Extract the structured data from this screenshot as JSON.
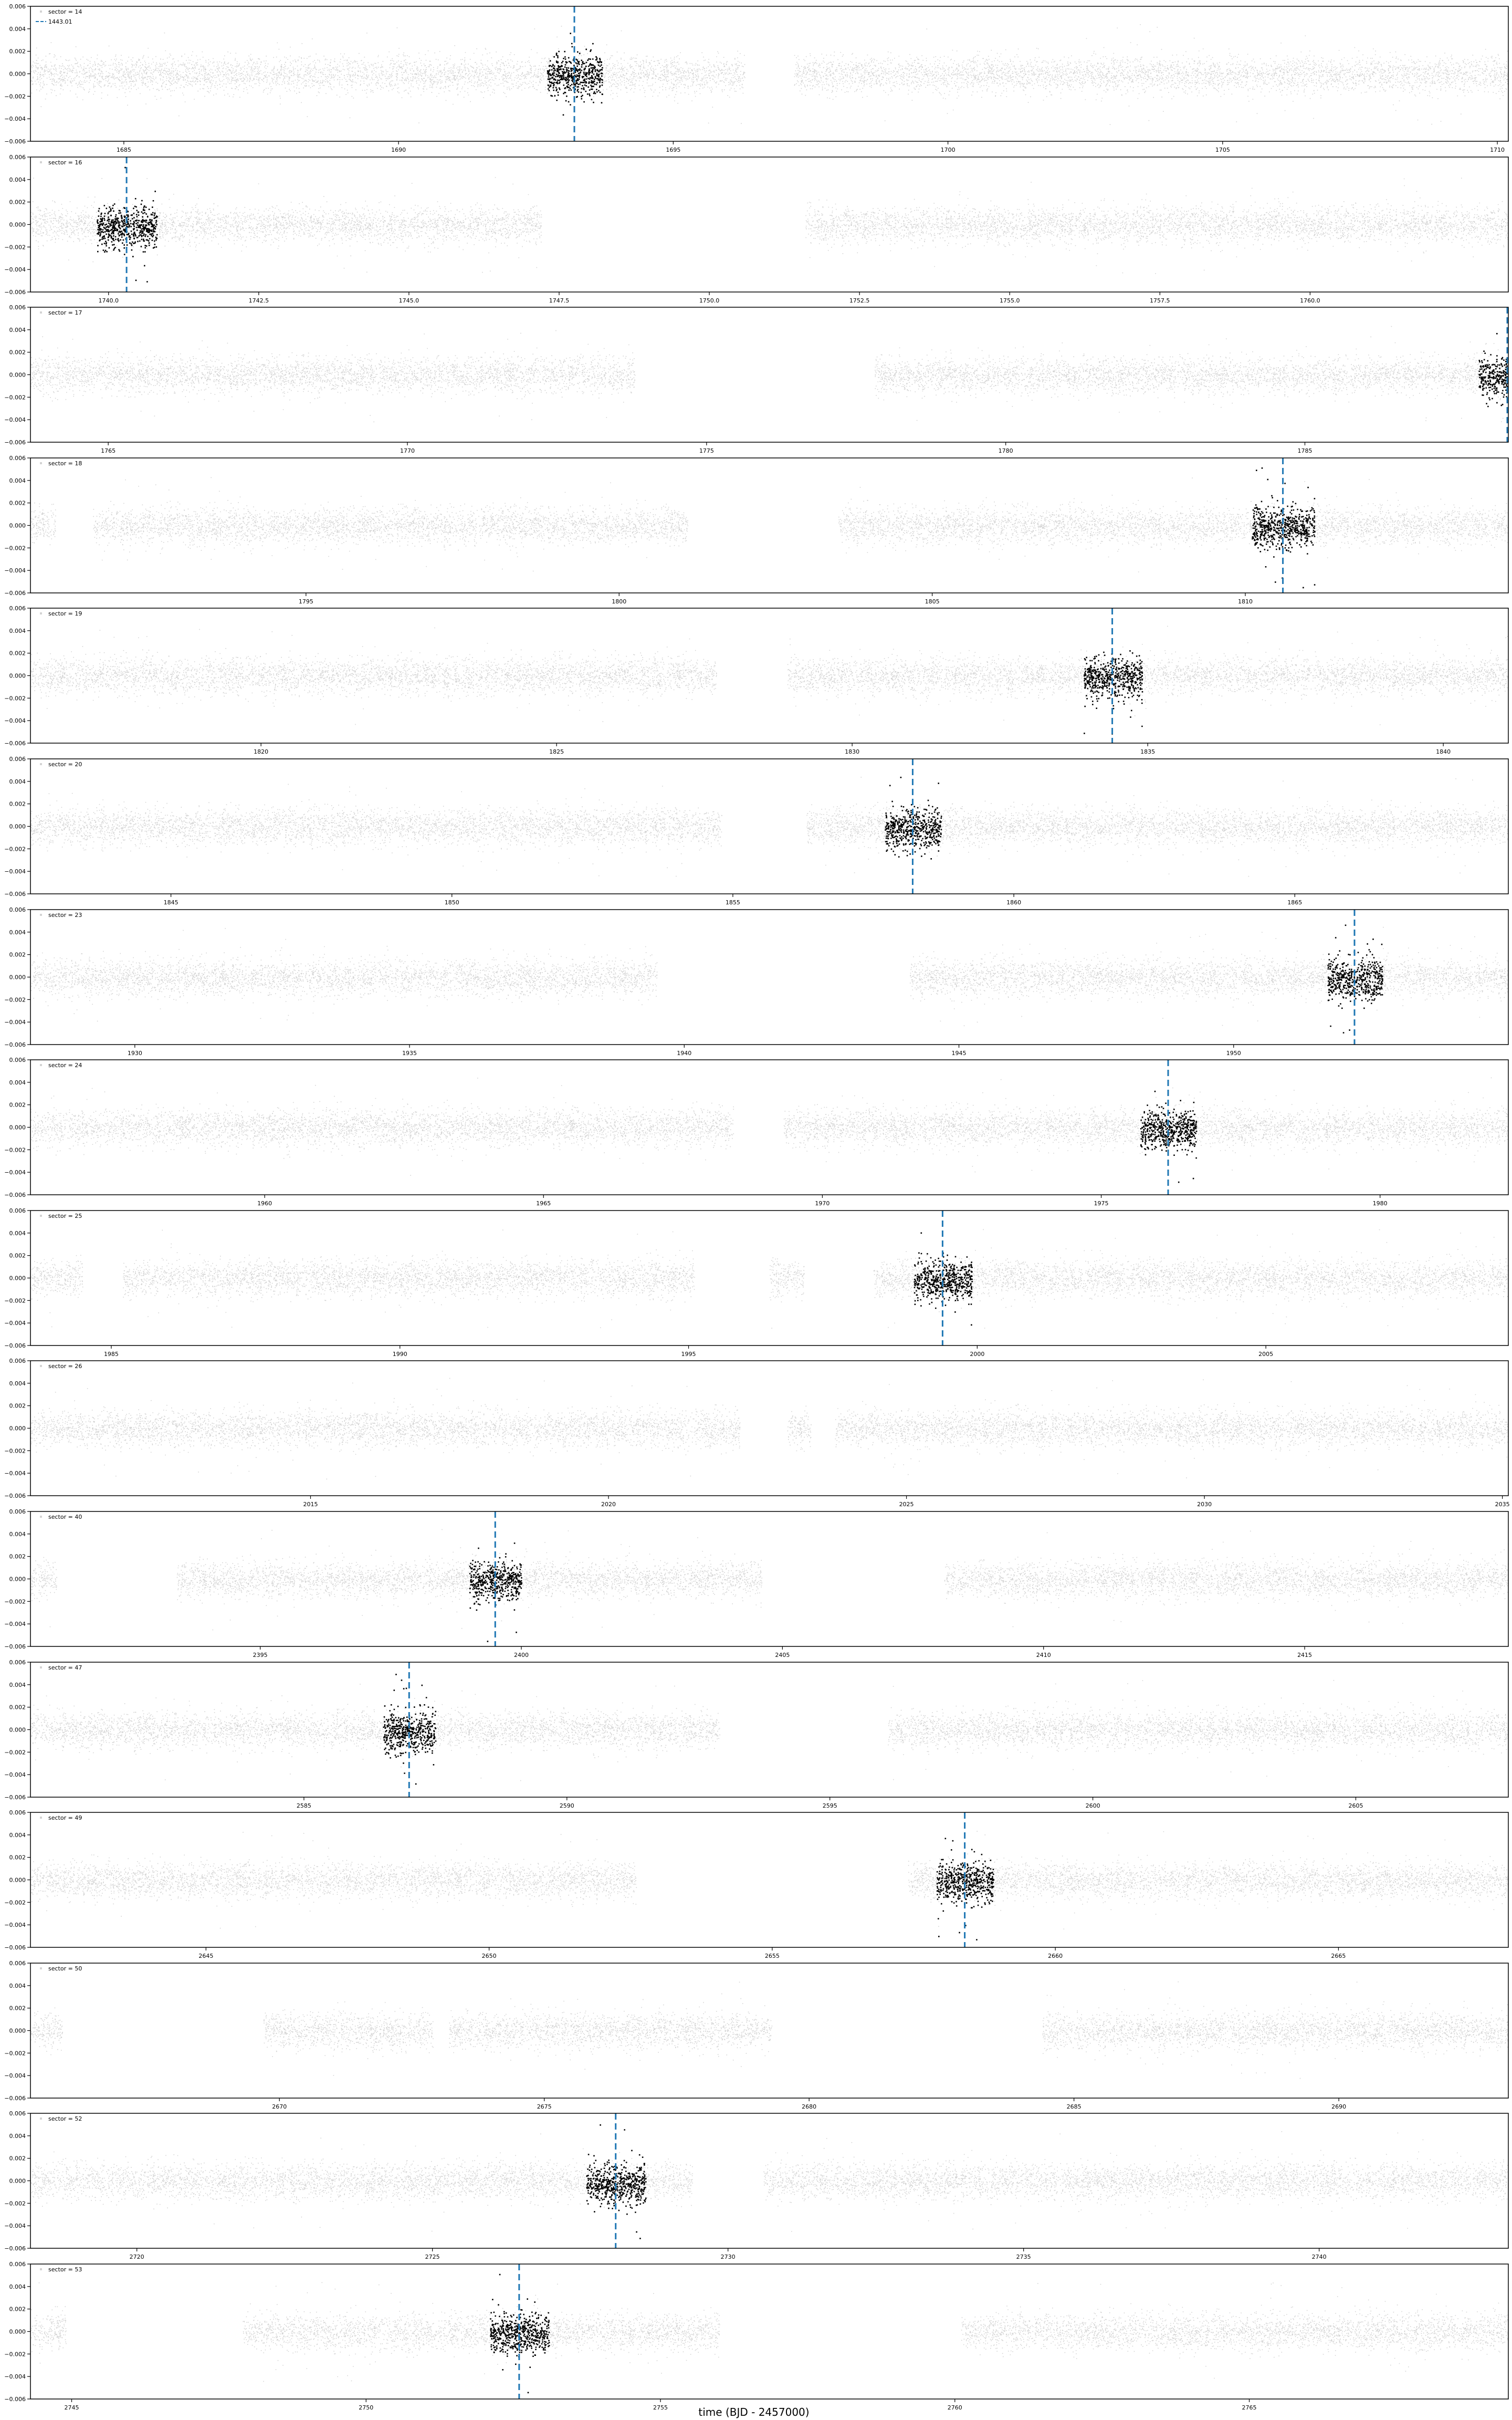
{
  "figure": {
    "xlabel": "time (BJD - 2457000)",
    "ylim": [
      -0.006,
      0.006
    ],
    "yticks": [
      -0.006,
      -0.004,
      -0.002,
      0.0,
      0.002,
      0.004,
      0.006
    ],
    "transit_legend_label": "1443.01"
  },
  "colors": {
    "background_points": "#d3d3d3",
    "in_transit_points": "#000000",
    "transit_line": "#1f77b4",
    "axes": "#000000"
  },
  "chart_data": [
    {
      "type": "scatter",
      "legend": "sector = 14",
      "xlim": [
        1683.3,
        1710.2
      ],
      "xticks": [
        1685,
        1690,
        1695,
        1700,
        1705,
        1710
      ],
      "transit_time": 1693.2,
      "gaps": [
        [
          1696.3,
          1697.2
        ]
      ],
      "segments": [
        [
          1683.3,
          1696.3
        ],
        [
          1697.2,
          1710.2
        ]
      ]
    },
    {
      "type": "scatter",
      "legend": "sector = 16",
      "xlim": [
        1738.7,
        1763.3
      ],
      "xticks": [
        1740.0,
        1742.5,
        1745.0,
        1747.5,
        1750.0,
        1752.5,
        1755.0,
        1757.5,
        1760.0
      ],
      "transit_time": 1740.3,
      "gaps": [
        [
          1747.2,
          1749.0
        ],
        [
          1749.0,
          1751.6
        ]
      ],
      "segments": [
        [
          1738.7,
          1747.2
        ],
        [
          1751.6,
          1763.3
        ]
      ]
    },
    {
      "type": "scatter",
      "legend": "sector = 17",
      "xlim": [
        1763.7,
        1788.4
      ],
      "xticks": [
        1765,
        1770,
        1775,
        1780,
        1785
      ],
      "transit_time": 1788.4,
      "gaps": [
        [
          1773.8,
          1777.8
        ]
      ],
      "segments": [
        [
          1763.7,
          1773.8
        ],
        [
          1777.8,
          1788.4
        ]
      ]
    },
    {
      "type": "scatter",
      "legend": "sector = 18",
      "xlim": [
        1790.6,
        1814.2
      ],
      "xticks": [
        1795,
        1800,
        1805,
        1810
      ],
      "transit_time": 1810.6,
      "gaps": [
        [
          1791.0,
          1791.2
        ],
        [
          1791.3,
          1791.6
        ],
        [
          1801.1,
          1803.5
        ]
      ],
      "segments": [
        [
          1790.6,
          1791.0
        ],
        [
          1791.6,
          1801.1
        ],
        [
          1803.5,
          1814.2
        ]
      ]
    },
    {
      "type": "scatter",
      "legend": "sector = 19",
      "xlim": [
        1816.1,
        1841.1
      ],
      "xticks": [
        1820,
        1825,
        1830,
        1835,
        1840
      ],
      "transit_time": 1834.4,
      "gaps": [
        [
          1827.7,
          1828.9
        ]
      ],
      "segments": [
        [
          1816.1,
          1827.7
        ],
        [
          1828.9,
          1841.1
        ]
      ]
    },
    {
      "type": "scatter",
      "legend": "sector = 20",
      "xlim": [
        1842.5,
        1868.8
      ],
      "xticks": [
        1845,
        1850,
        1855,
        1860,
        1865
      ],
      "transit_time": 1858.2,
      "gaps": [
        [
          1854.8,
          1856.3
        ]
      ],
      "segments": [
        [
          1842.5,
          1854.8
        ],
        [
          1856.3,
          1868.8
        ]
      ]
    },
    {
      "type": "scatter",
      "legend": "sector = 23",
      "xlim": [
        1928.1,
        1955.0
      ],
      "xticks": [
        1930,
        1935,
        1940,
        1945,
        1950
      ],
      "transit_time": 1952.2,
      "gaps": [
        [
          1939.5,
          1944.1
        ]
      ],
      "segments": [
        [
          1928.1,
          1939.5
        ],
        [
          1944.1,
          1955.0
        ]
      ]
    },
    {
      "type": "scatter",
      "legend": "sector = 24",
      "xlim": [
        1955.8,
        1982.3
      ],
      "xticks": [
        1960,
        1965,
        1970,
        1975,
        1980
      ],
      "transit_time": 1976.2,
      "gaps": [
        [
          1968.4,
          1969.3
        ]
      ],
      "segments": [
        [
          1955.8,
          1968.4
        ],
        [
          1969.3,
          1982.3
        ]
      ]
    },
    {
      "type": "scatter",
      "legend": "sector = 25",
      "xlim": [
        1983.6,
        2009.2
      ],
      "xticks": [
        1985,
        1990,
        1995,
        2000,
        2005
      ],
      "transit_time": 1999.4,
      "gaps": [
        [
          1984.5,
          1985.2
        ],
        [
          1995.1,
          1996.4
        ],
        [
          1997.0,
          1998.2
        ]
      ],
      "segments": [
        [
          1983.6,
          1984.5
        ],
        [
          1985.2,
          1995.1
        ],
        [
          1996.4,
          1997.0
        ],
        [
          1998.2,
          2009.2
        ]
      ]
    },
    {
      "type": "scatter",
      "legend": "sector = 26",
      "xlim": [
        2010.3,
        2035.1
      ],
      "xticks": [
        2015,
        2020,
        2025,
        2030,
        2035
      ],
      "gaps": [
        [
          2022.2,
          2023.0
        ],
        [
          2023.4,
          2023.8
        ]
      ],
      "segments": [
        [
          2010.3,
          2022.2
        ],
        [
          2023.0,
          2023.4
        ],
        [
          2023.8,
          2035.1
        ]
      ]
    },
    {
      "type": "scatter",
      "legend": "sector = 40",
      "xlim": [
        2390.6,
        2418.9
      ],
      "xticks": [
        2395,
        2400,
        2405,
        2410,
        2415
      ],
      "transit_time": 2399.5,
      "gaps": [
        [
          2391.1,
          2393.4
        ],
        [
          2404.6,
          2408.1
        ]
      ],
      "segments": [
        [
          2390.6,
          2391.1
        ],
        [
          2393.4,
          2404.6
        ],
        [
          2408.1,
          2418.9
        ]
      ]
    },
    {
      "type": "scatter",
      "legend": "sector = 47",
      "xlim": [
        2579.8,
        2607.9
      ],
      "xticks": [
        2585,
        2590,
        2595,
        2600,
        2605
      ],
      "transit_time": 2587.0,
      "gaps": [
        [
          2592.9,
          2596.1
        ]
      ],
      "segments": [
        [
          2579.8,
          2592.9
        ],
        [
          2596.1,
          2607.9
        ]
      ]
    },
    {
      "type": "scatter",
      "legend": "sector = 49",
      "xlim": [
        2641.9,
        2668.0
      ],
      "xticks": [
        2645,
        2650,
        2655,
        2660,
        2665
      ],
      "transit_time": 2658.4,
      "gaps": [
        [
          2652.6,
          2657.4
        ]
      ],
      "segments": [
        [
          2641.9,
          2652.6
        ],
        [
          2657.4,
          2668.0
        ]
      ]
    },
    {
      "type": "scatter",
      "legend": "sector = 50",
      "xlim": [
        2665.3,
        2693.2
      ],
      "xticks": [
        2670,
        2675,
        2680,
        2685,
        2690
      ],
      "gaps": [
        [
          2665.9,
          2669.7
        ],
        [
          2672.9,
          2673.2
        ],
        [
          2679.3,
          2684.4
        ]
      ],
      "segments": [
        [
          2665.3,
          2665.9
        ],
        [
          2669.7,
          2672.9
        ],
        [
          2673.2,
          2679.3
        ],
        [
          2684.4,
          2693.2
        ]
      ]
    },
    {
      "type": "scatter",
      "legend": "sector = 52",
      "xlim": [
        2718.2,
        2743.2
      ],
      "xticks": [
        2720,
        2725,
        2730,
        2735,
        2740
      ],
      "transit_time": 2728.1,
      "gaps": [
        [
          2729.4,
          2730.6
        ]
      ],
      "segments": [
        [
          2718.2,
          2729.4
        ],
        [
          2730.6,
          2743.2
        ]
      ]
    },
    {
      "type": "scatter",
      "legend": "sector = 53",
      "xlim": [
        2744.3,
        2769.4
      ],
      "xticks": [
        2745,
        2750,
        2755,
        2760,
        2765
      ],
      "transit_time": 2752.6,
      "gaps": [
        [
          2744.9,
          2747.9
        ],
        [
          2756.0,
          2760.1
        ]
      ],
      "segments": [
        [
          2744.3,
          2744.9
        ],
        [
          2747.9,
          2756.0
        ],
        [
          2760.1,
          2769.4
        ]
      ]
    }
  ]
}
